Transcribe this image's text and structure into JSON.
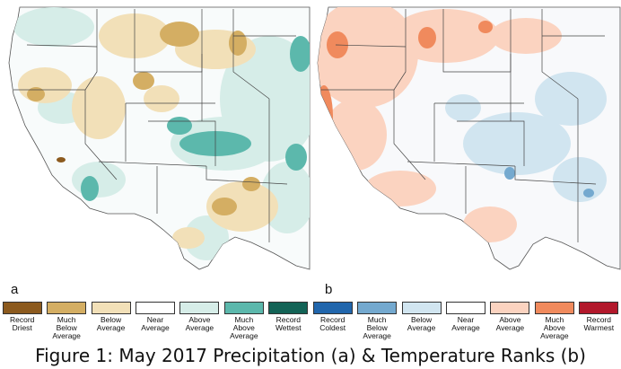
{
  "panels": [
    {
      "letter": "a"
    },
    {
      "letter": "b"
    }
  ],
  "legend": [
    {
      "label": "Record\nDriest",
      "color": "#8c5a1e"
    },
    {
      "label": "Much\nBelow\nAverage",
      "color": "#d4ae63"
    },
    {
      "label": "Below\nAverage",
      "color": "#f2e0b8"
    },
    {
      "label": "Near\nAverage",
      "color": "#ffffff"
    },
    {
      "label": "Above Average",
      "color": "#d6ede8"
    },
    {
      "label": "Much\nAbove\nAverage",
      "color": "#5cb8ac"
    },
    {
      "label": "Record\nWettest",
      "color": "#136356"
    },
    {
      "label": "Record\nColdest",
      "color": "#2166ac"
    },
    {
      "label": "Much\nBelow\nAverage",
      "color": "#74a9cf"
    },
    {
      "label": "Below\nAverage",
      "color": "#d1e5f0"
    },
    {
      "label": "Near\nAverage",
      "color": "#ffffff"
    },
    {
      "label": "Above\nAverage",
      "color": "#fbd3c0"
    },
    {
      "label": "Much\nAbove\nAverage",
      "color": "#f08a5d"
    },
    {
      "label": "Record\nWarmest",
      "color": "#b2182b"
    }
  ],
  "caption": "Figure 1: May 2017 Precipitation (a) & Temperature Ranks (b)"
}
